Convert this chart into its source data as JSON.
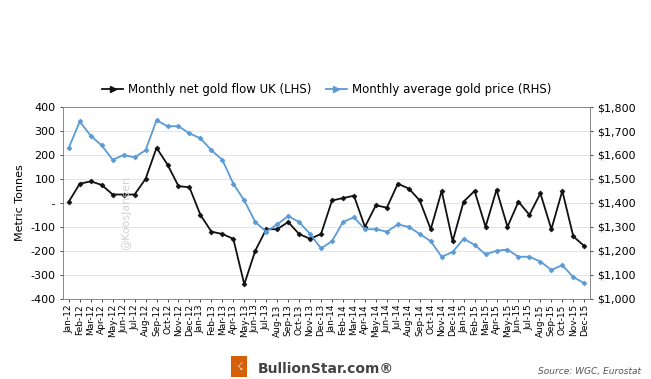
{
  "legend_lhs": "Monthly net gold flow UK (LHS)",
  "legend_rhs": "Monthly average gold price (RHS)",
  "ylabel_left": "Metric Tonnes",
  "source_text": "Source: WGC, Eurostat",
  "logo_text": "BullionStar.com®",
  "watermark": "@KoosJansen",
  "background_color": "#ffffff",
  "lhs_color": "#111111",
  "rhs_color": "#5b9bd5",
  "ylim_left": [
    -400,
    400
  ],
  "ylim_right": [
    1000,
    1800
  ],
  "yticks_left": [
    -400,
    -300,
    -200,
    -100,
    0,
    100,
    200,
    300,
    400
  ],
  "yticks_right": [
    1000,
    1100,
    1200,
    1300,
    1400,
    1500,
    1600,
    1700,
    1800
  ],
  "labels": [
    "Jan-12",
    "Feb-12",
    "Mar-12",
    "Apr-12",
    "May-12",
    "Jun-12",
    "Jul-12",
    "Aug-12",
    "Sep-12",
    "Oct-12",
    "Nov-12",
    "Dec-12",
    "Jan-13",
    "Feb-13",
    "Mar-13",
    "Apr-13",
    "May-13",
    "Jun-13",
    "Jul-13",
    "Aug-13",
    "Sep-13",
    "Oct-13",
    "Nov-13",
    "Dec-13",
    "Jan-14",
    "Feb-14",
    "Mar-14",
    "Apr-14",
    "May-14",
    "Jun-14",
    "Jul-14",
    "Aug-14",
    "Sep-14",
    "Oct-14",
    "Nov-14",
    "Dec-14",
    "Jan-15",
    "Feb-15",
    "Mar-15",
    "Apr-15",
    "May-15",
    "Jun-15",
    "Jul-15",
    "Aug-15",
    "Sep-15",
    "Oct-15",
    "Nov-15",
    "Dec-15"
  ],
  "lhs_values": [
    5,
    80,
    90,
    75,
    35,
    35,
    35,
    100,
    230,
    160,
    70,
    65,
    -50,
    -120,
    -130,
    -150,
    -340,
    -200,
    -110,
    -110,
    -80,
    -130,
    -150,
    -130,
    10,
    20,
    30,
    -100,
    -10,
    -20,
    80,
    60,
    10,
    -110,
    50,
    -160,
    5,
    50,
    -100,
    55,
    -100,
    5,
    -50,
    40,
    -110,
    50,
    -140,
    -180
  ],
  "rhs_values": [
    1630,
    1740,
    1680,
    1640,
    1580,
    1600,
    1590,
    1620,
    1745,
    1720,
    1720,
    1690,
    1670,
    1620,
    1580,
    1480,
    1410,
    1320,
    1280,
    1310,
    1345,
    1320,
    1270,
    1210,
    1240,
    1320,
    1340,
    1290,
    1290,
    1280,
    1310,
    1300,
    1270,
    1240,
    1175,
    1195,
    1250,
    1225,
    1185,
    1200,
    1205,
    1175,
    1175,
    1155,
    1120,
    1140,
    1090,
    1065
  ]
}
